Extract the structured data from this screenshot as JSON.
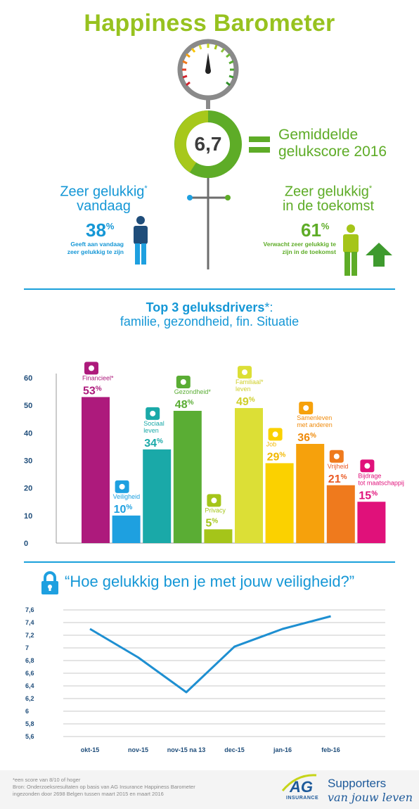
{
  "title": "Happiness Barometer",
  "score": {
    "value": "6,7",
    "label_line1": "Gemiddelde",
    "label_line2": "gelukscore 2016"
  },
  "today": {
    "heading_line1": "Zeer gelukkig",
    "heading_star": "*",
    "heading_line2": "vandaag",
    "percent": "38",
    "percent_sign": "%",
    "note_line1": "Geeft aan vandaag",
    "note_line2": "zeer gelukkig te zijn"
  },
  "future": {
    "heading_line1": "Zeer gelukkig",
    "heading_star": "*",
    "heading_line2": "in de toekomst",
    "percent": "61",
    "percent_sign": "%",
    "note_line1": "Verwacht zeer gelukkig te",
    "note_line2": "zijn in de toekomst"
  },
  "drivers": {
    "heading_line1": "Top 3 geluksdrivers",
    "heading_star": "*:",
    "heading_line2": "familie, gezondheid, fin. Situatie"
  },
  "question": "“Hoe gelukkig ben je met jouw veiligheid?”",
  "chart_data": [
    {
      "type": "bar",
      "ylim": [
        0,
        60
      ],
      "yticks": [
        "0",
        "10",
        "20",
        "30",
        "40",
        "50",
        "60"
      ],
      "bars": [
        {
          "label": "Financieel*",
          "value": 53,
          "value_text": "53",
          "color": "#ad1a7c",
          "label_color": "#ad1a7c",
          "icon": "euro-icon"
        },
        {
          "label": "Veiligheid",
          "value": 10,
          "value_text": "10",
          "color": "#1ea0e0",
          "label_color": "#1ea0e0",
          "icon": "lock-icon"
        },
        {
          "label": "Sociaal leven",
          "value": 34,
          "value_text": "34",
          "color": "#1aa9a8",
          "label_color": "#1aa9a8",
          "icon": "people-icon"
        },
        {
          "label": "Gezondheid*",
          "value": 48,
          "value_text": "48",
          "color": "#5aad34",
          "label_color": "#5aad34",
          "icon": "medkit-icon"
        },
        {
          "label": "Privacy",
          "value": 5,
          "value_text": "5",
          "color": "#a5c519",
          "label_color": "#a5c519",
          "icon": "privacy-icon"
        },
        {
          "label": "Familiaal* leven",
          "value": 49,
          "value_text": "49",
          "color": "#dcdf36",
          "label_color": "#cfcf2a",
          "icon": "house-icon"
        },
        {
          "label": "Job",
          "value": 29,
          "value_text": "29",
          "color": "#fbd100",
          "label_color": "#f2b800",
          "icon": "desk-icon"
        },
        {
          "label": "Samenleven met anderen",
          "value": 36,
          "value_text": "36",
          "color": "#f6a10c",
          "label_color": "#ef8a0a",
          "icon": "group-icon"
        },
        {
          "label": "Vrijheid",
          "value": 21,
          "value_text": "21",
          "color": "#ef7a1d",
          "label_color": "#ea5a24",
          "icon": "liberty-icon"
        },
        {
          "label": "Bijdrage tot maatschappij",
          "value": 15,
          "value_text": "15",
          "color": "#e0117a",
          "label_color": "#e0117a",
          "icon": "handshake-icon"
        }
      ],
      "percent_sign": "%"
    },
    {
      "type": "line",
      "categories": [
        "okt-15",
        "nov-15",
        "nov-15 na 13",
        "dec-15",
        "jan-16",
        "feb-16"
      ],
      "values": [
        7.3,
        6.85,
        6.3,
        7.02,
        7.3,
        7.5
      ],
      "ylim": [
        5.6,
        7.6
      ],
      "yticks": [
        "5,6",
        "5,8",
        "6",
        "6,2",
        "6,4",
        "6,6",
        "6,8",
        "7",
        "7,2",
        "7,4",
        "7,6"
      ],
      "color": "#1e8fd1"
    }
  ],
  "footnote": {
    "line1": "*een score van 8/10 of hoger",
    "line2": "Bron: Onderzoeksresultaten op basis van AG Insurance Happiness Barometer",
    "line3": "ingezonden door 2698 Belgen tussen maart 2015 en maart 2016"
  },
  "brand": {
    "logo": "AG",
    "logo_sub": "INSURANCE",
    "tagline1": "Supporters",
    "tagline2": "van jouw leven"
  }
}
